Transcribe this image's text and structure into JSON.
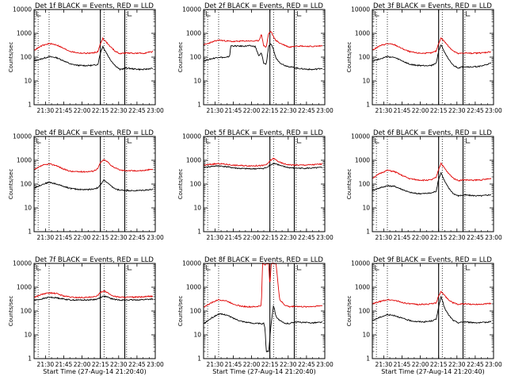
{
  "chart_data": {
    "type": "line",
    "layout": "3x3 grid of line plots",
    "xlabel": "Start Time (27-Aug-14 21:20:40)",
    "ylabel": "Counts/sec",
    "x_ticks": [
      "21:30",
      "21:45",
      "22:00",
      "22:15",
      "22:30",
      "22:45",
      "23:00"
    ],
    "x_tick_minutes": [
      0,
      15,
      30,
      45,
      60,
      75,
      90
    ],
    "x_range_minutes": [
      -9.33,
      90
    ],
    "y_scale": "log",
    "y_ticks": [
      "1",
      "10",
      "100",
      "1000",
      "10000"
    ],
    "ylim": [
      1,
      10000
    ],
    "grid": false,
    "series_colors": {
      "black": "#000000",
      "red": "#e00000"
    },
    "marker_lines_minutes": [
      {
        "t": -6,
        "style": "dotted"
      },
      {
        "t": 3,
        "style": "dotted"
      },
      {
        "t": 45,
        "style": "solid"
      },
      {
        "t": 48,
        "style": "dotted"
      },
      {
        "t": 65,
        "style": "solid"
      },
      {
        "t": 66.5,
        "style": "dotted"
      }
    ],
    "panels": [
      {
        "title": "Det 1f BLACK = Events, RED = LLD",
        "show_xlabel": false,
        "series": [
          {
            "color": "black",
            "x": [
              -9,
              -3,
              3,
              9,
              15,
              21,
              27,
              33,
              39,
              43,
              45,
              47,
              50,
              53,
              57,
              61,
              66,
              72,
              80,
              88
            ],
            "y": [
              70,
              85,
              105,
              95,
              70,
              50,
              45,
              44,
              45,
              50,
              150,
              280,
              150,
              80,
              45,
              30,
              35,
              32,
              30,
              34
            ]
          },
          {
            "color": "red",
            "x": [
              -9,
              -3,
              3,
              9,
              15,
              21,
              27,
              33,
              39,
              43,
              45,
              47,
              50,
              53,
              57,
              61,
              66,
              72,
              80,
              88
            ],
            "y": [
              200,
              300,
              370,
              330,
              230,
              170,
              150,
              145,
              150,
              170,
              360,
              620,
              420,
              280,
              180,
              140,
              150,
              145,
              145,
              170
            ]
          }
        ]
      },
      {
        "title": "Det 2f BLACK = Events, RED = LLD",
        "show_xlabel": false,
        "series": [
          {
            "color": "black",
            "x": [
              -9,
              -3,
              3,
              9,
              12,
              13,
              18,
              24,
              28,
              33,
              36,
              38,
              40,
              42,
              44,
              46,
              48,
              50,
              53,
              57,
              61,
              66,
              72,
              80,
              88
            ],
            "y": [
              70,
              85,
              100,
              95,
              110,
              300,
              290,
              290,
              300,
              280,
              110,
              150,
              55,
              50,
              300,
              350,
              200,
              90,
              60,
              45,
              40,
              35,
              32,
              30,
              34
            ]
          },
          {
            "color": "red",
            "x": [
              -9,
              -3,
              3,
              9,
              15,
              21,
              27,
              33,
              36,
              38,
              40,
              42,
              44,
              46,
              48,
              50,
              53,
              57,
              61,
              66,
              72,
              80,
              88
            ],
            "y": [
              330,
              420,
              520,
              480,
              450,
              470,
              480,
              470,
              500,
              900,
              300,
              260,
              1000,
              1200,
              700,
              500,
              390,
              320,
              260,
              300,
              290,
              280,
              300
            ]
          }
        ]
      },
      {
        "title": "Det 3f BLACK = Events, RED = LLD",
        "show_xlabel": false,
        "series": [
          {
            "color": "black",
            "x": [
              -9,
              -3,
              3,
              9,
              15,
              21,
              27,
              33,
              39,
              43,
              45,
              47,
              50,
              53,
              57,
              61,
              66,
              72,
              80,
              88
            ],
            "y": [
              70,
              85,
              105,
              95,
              70,
              50,
              45,
              44,
              45,
              55,
              180,
              330,
              160,
              80,
              45,
              35,
              40,
              38,
              42,
              55
            ]
          },
          {
            "color": "red",
            "x": [
              -9,
              -3,
              3,
              9,
              15,
              21,
              27,
              33,
              39,
              43,
              45,
              47,
              50,
              53,
              57,
              61,
              66,
              72,
              80,
              88
            ],
            "y": [
              200,
              300,
              370,
              330,
              230,
              170,
              150,
              145,
              150,
              180,
              380,
              640,
              440,
              290,
              180,
              140,
              150,
              145,
              150,
              170
            ]
          }
        ]
      },
      {
        "title": "Det 4f BLACK = Events, RED = LLD",
        "show_xlabel": false,
        "series": [
          {
            "color": "black",
            "x": [
              -9,
              -3,
              3,
              9,
              15,
              21,
              27,
              33,
              39,
              43,
              45,
              48,
              51,
              54,
              58,
              62,
              66,
              72,
              80,
              88
            ],
            "y": [
              70,
              95,
              120,
              100,
              80,
              65,
              60,
              58,
              62,
              70,
              90,
              150,
              110,
              80,
              60,
              55,
              55,
              52,
              55,
              60
            ]
          },
          {
            "color": "red",
            "x": [
              -9,
              -3,
              3,
              9,
              15,
              21,
              27,
              33,
              39,
              43,
              45,
              48,
              51,
              54,
              58,
              62,
              66,
              72,
              80,
              88
            ],
            "y": [
              400,
              600,
              700,
              600,
              420,
              340,
              330,
              330,
              350,
              450,
              800,
              1050,
              850,
              600,
              450,
              380,
              370,
              360,
              370,
              420
            ]
          }
        ]
      },
      {
        "title": "Det 5f BLACK = Events, RED = LLD",
        "show_xlabel": false,
        "series": [
          {
            "color": "black",
            "x": [
              -9,
              -3,
              3,
              9,
              15,
              21,
              27,
              33,
              39,
              43,
              45,
              48,
              51,
              54,
              58,
              62,
              66,
              72,
              80,
              88
            ],
            "y": [
              500,
              550,
              580,
              540,
              480,
              450,
              440,
              440,
              450,
              500,
              620,
              750,
              680,
              580,
              520,
              480,
              470,
              460,
              470,
              500
            ]
          },
          {
            "color": "red",
            "x": [
              -9,
              -3,
              3,
              9,
              15,
              21,
              27,
              33,
              39,
              43,
              45,
              48,
              51,
              54,
              58,
              62,
              66,
              72,
              80,
              88
            ],
            "y": [
              620,
              680,
              720,
              680,
              620,
              600,
              590,
              590,
              600,
              680,
              950,
              1200,
              950,
              780,
              680,
              640,
              630,
              630,
              650,
              700
            ]
          }
        ]
      },
      {
        "title": "Det 6f BLACK = Events, RED = LLD",
        "show_xlabel": false,
        "series": [
          {
            "color": "black",
            "x": [
              -9,
              -3,
              3,
              9,
              15,
              21,
              27,
              33,
              39,
              43,
              45,
              47,
              50,
              53,
              57,
              61,
              66,
              72,
              80,
              88
            ],
            "y": [
              55,
              70,
              85,
              80,
              60,
              45,
              40,
              40,
              42,
              50,
              160,
              300,
              130,
              70,
              40,
              32,
              35,
              33,
              32,
              36
            ]
          },
          {
            "color": "red",
            "x": [
              -9,
              -3,
              3,
              9,
              15,
              21,
              27,
              33,
              39,
              43,
              45,
              47,
              50,
              53,
              57,
              61,
              66,
              72,
              80,
              88
            ],
            "y": [
              180,
              280,
              380,
              330,
              230,
              170,
              150,
              145,
              150,
              190,
              420,
              750,
              450,
              280,
              180,
              140,
              150,
              145,
              150,
              170
            ]
          }
        ]
      },
      {
        "title": "Det 7f BLACK = Events, RED = LLD",
        "show_xlabel": true,
        "series": [
          {
            "color": "black",
            "x": [
              -9,
              -3,
              3,
              9,
              15,
              21,
              27,
              33,
              39,
              43,
              45,
              48,
              51,
              54,
              58,
              62,
              66,
              72,
              80,
              88
            ],
            "y": [
              280,
              320,
              380,
              360,
              320,
              290,
              290,
              290,
              300,
              320,
              380,
              420,
              380,
              330,
              300,
              290,
              290,
              290,
              300,
              320
            ]
          },
          {
            "color": "red",
            "x": [
              -9,
              -3,
              3,
              9,
              15,
              21,
              27,
              33,
              39,
              43,
              45,
              48,
              51,
              54,
              58,
              62,
              66,
              72,
              80,
              88
            ],
            "y": [
              380,
              500,
              580,
              540,
              430,
              380,
              370,
              370,
              380,
              450,
              620,
              700,
              580,
              460,
              400,
              380,
              380,
              380,
              390,
              420
            ]
          }
        ]
      },
      {
        "title": "Det 8f BLACK = Events, RED = LLD",
        "show_xlabel": true,
        "series": [
          {
            "color": "black",
            "x": [
              -9,
              -3,
              3,
              9,
              15,
              21,
              27,
              33,
              36,
              38,
              40,
              41,
              42,
              44,
              46,
              48,
              50,
              53,
              57,
              61,
              66,
              72,
              80,
              88
            ],
            "y": [
              30,
              50,
              75,
              70,
              50,
              38,
              33,
              30,
              30,
              28,
              30,
              20,
              2,
              2,
              30,
              180,
              60,
              40,
              30,
              30,
              35,
              33,
              32,
              34
            ]
          },
          {
            "color": "red",
            "x": [
              -9,
              -3,
              3,
              9,
              15,
              21,
              27,
              33,
              36,
              38,
              39,
              40,
              41,
              42,
              44,
              45,
              46,
              48,
              50,
              53,
              57,
              61,
              66,
              72,
              80,
              88
            ],
            "y": [
              150,
              220,
              300,
              270,
              200,
              160,
              150,
              150,
              160,
              170,
              10000,
              10000,
              8000,
              10000,
              10000,
              1000,
              10000,
              10000,
              10000,
              300,
              180,
              150,
              160,
              150,
              155,
              170
            ]
          }
        ]
      },
      {
        "title": "Det 9f BLACK = Events, RED = LLD",
        "show_xlabel": true,
        "series": [
          {
            "color": "black",
            "x": [
              -9,
              -3,
              3,
              9,
              15,
              21,
              27,
              33,
              39,
              43,
              45,
              47,
              50,
              53,
              57,
              61,
              66,
              72,
              80,
              88
            ],
            "y": [
              40,
              55,
              70,
              65,
              50,
              40,
              36,
              35,
              38,
              45,
              150,
              400,
              130,
              70,
              40,
              32,
              35,
              33,
              32,
              36
            ]
          },
          {
            "color": "red",
            "x": [
              -9,
              -3,
              3,
              9,
              15,
              21,
              27,
              33,
              39,
              43,
              45,
              47,
              50,
              53,
              57,
              61,
              66,
              72,
              80,
              88
            ],
            "y": [
              200,
              250,
              300,
              280,
              230,
              200,
              190,
              190,
              200,
              220,
              420,
              650,
              450,
              300,
              220,
              190,
              200,
              190,
              195,
              210
            ]
          }
        ]
      }
    ]
  }
}
